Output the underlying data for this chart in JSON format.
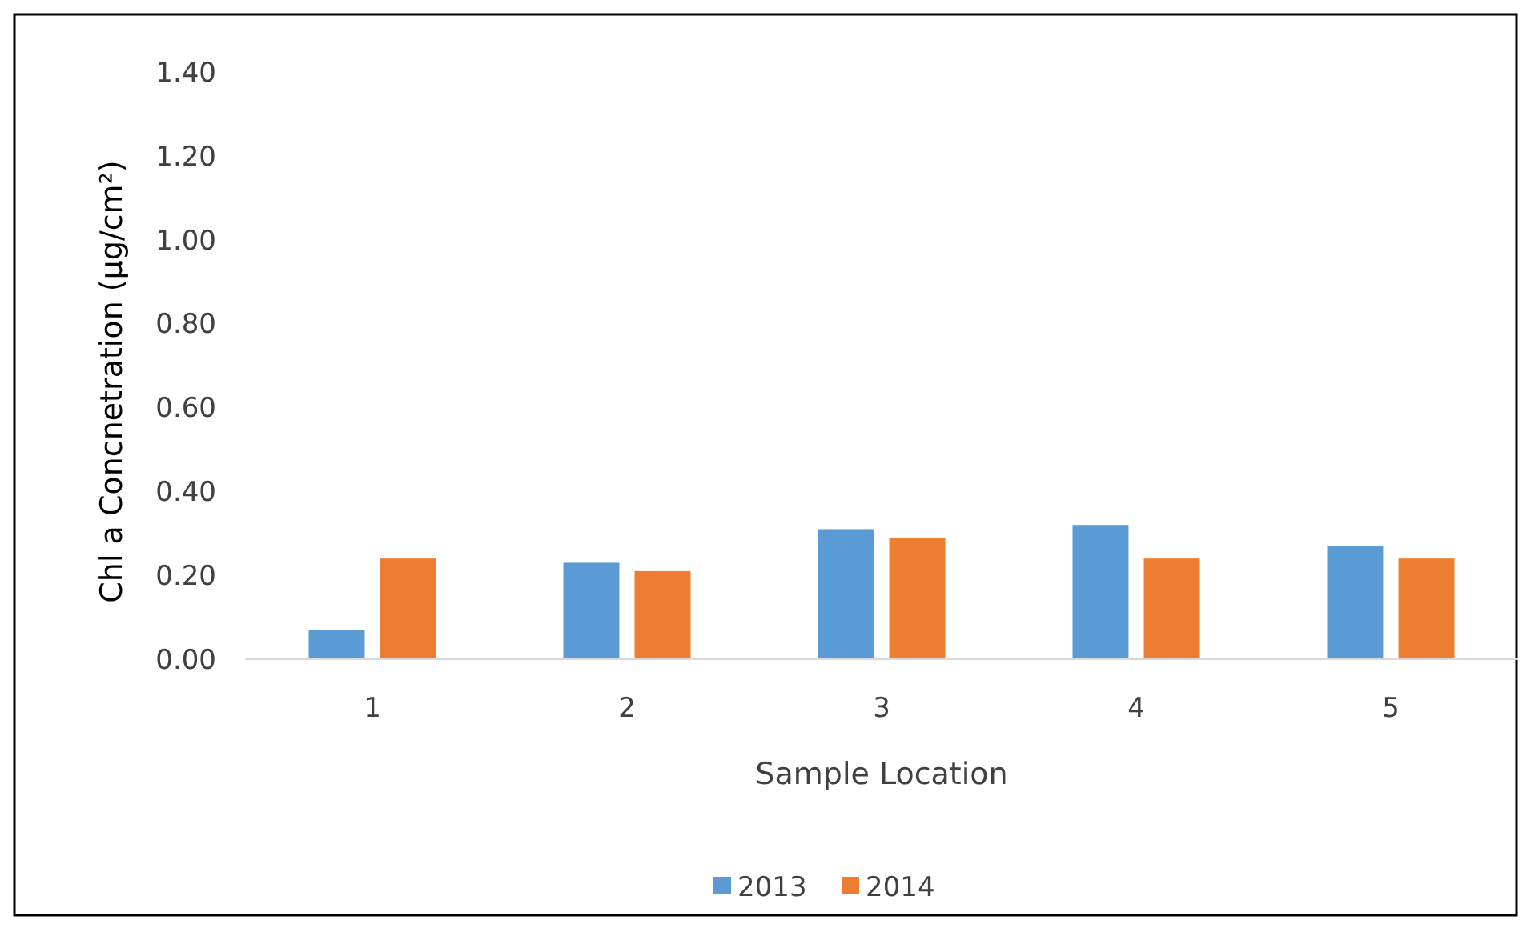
{
  "chart_data": {
    "type": "bar",
    "xlabel": "Sample Location",
    "ylabel": "Chl a Concnetration (µg/cm²)",
    "categories": [
      "1",
      "2",
      "3",
      "4",
      "5"
    ],
    "series": [
      {
        "name": "2013",
        "color": "#5b9bd5",
        "values": [
          0.07,
          0.23,
          0.31,
          0.32,
          0.27
        ]
      },
      {
        "name": "2014",
        "color": "#ed7d31",
        "values": [
          0.24,
          0.21,
          0.29,
          0.24,
          0.24
        ]
      }
    ],
    "ylim": [
      0,
      1.4
    ],
    "yticks": [
      {
        "value": 0,
        "label": "0.00"
      },
      {
        "value": 0.2,
        "label": "0.20"
      },
      {
        "value": 0.4,
        "label": "0.40"
      },
      {
        "value": 0.6,
        "label": "0.60"
      },
      {
        "value": 0.8,
        "label": "0.80"
      },
      {
        "value": 1,
        "label": "1.00"
      },
      {
        "value": 1.2,
        "label": "1.20"
      },
      {
        "value": 1.4,
        "label": "1.40"
      }
    ],
    "grid": false,
    "legend": "bottom"
  }
}
